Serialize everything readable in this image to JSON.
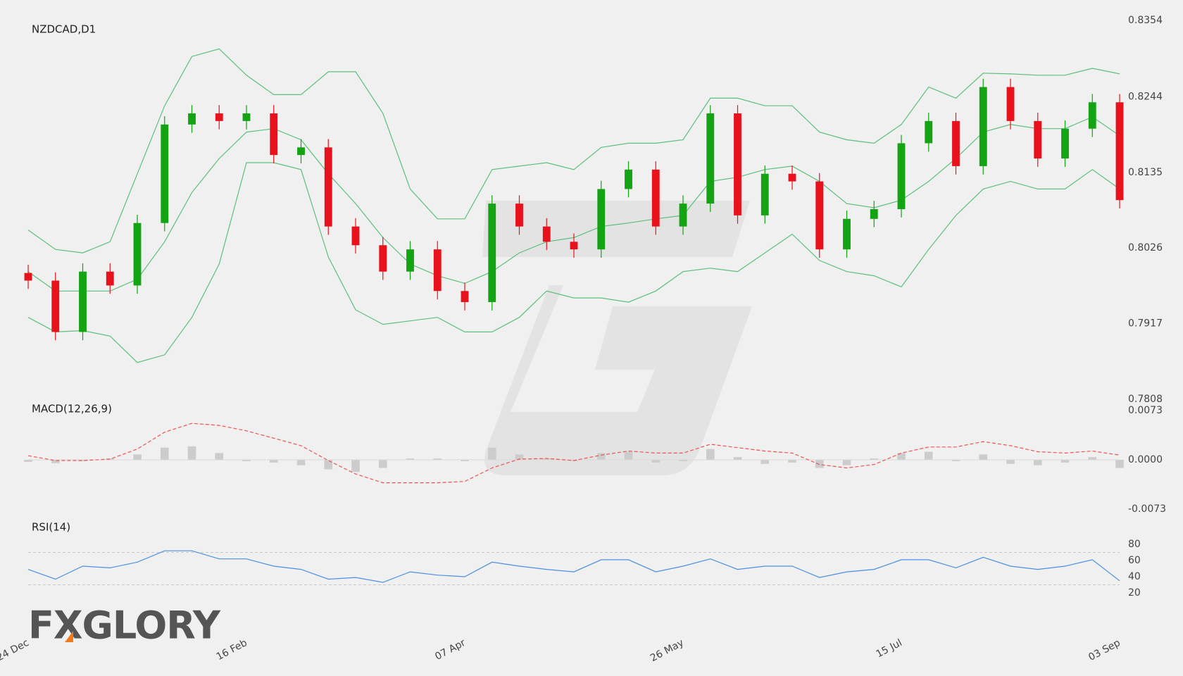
{
  "brand": "FXGLORY",
  "chart_data": [
    {
      "type": "candlestick",
      "title": "NZDCAD,D1",
      "categories": [
        "24 Dec",
        null,
        null,
        null,
        null,
        null,
        null,
        null,
        "16 Feb",
        null,
        null,
        null,
        null,
        null,
        null,
        null,
        "07 Apr",
        null,
        null,
        null,
        null,
        null,
        null,
        null,
        "26 May",
        null,
        null,
        null,
        null,
        null,
        null,
        null,
        "15 Jul",
        null,
        null,
        null,
        null,
        null,
        null,
        null,
        "03 Sep"
      ],
      "open": [
        0.799,
        0.7979,
        0.7905,
        0.7992,
        0.7972,
        0.8062,
        0.8204,
        0.822,
        0.8209,
        0.822,
        0.816,
        0.8171,
        0.8057,
        0.803,
        0.7992,
        0.8024,
        0.7964,
        0.7948,
        0.809,
        0.8057,
        0.8035,
        0.8024,
        0.8111,
        0.8139,
        0.8057,
        0.809,
        0.822,
        0.8073,
        0.8133,
        0.8122,
        0.8024,
        0.8068,
        0.8082,
        0.8177,
        0.8209,
        0.8144,
        0.8258,
        0.8209,
        0.8155,
        0.8198,
        0.8236
      ],
      "high": [
        0.8002,
        0.7991,
        0.8004,
        0.8004,
        0.8074,
        0.8216,
        0.8232,
        0.8232,
        0.8232,
        0.8232,
        0.8183,
        0.8183,
        0.8069,
        0.8042,
        0.8036,
        0.8036,
        0.7976,
        0.8102,
        0.8102,
        0.8069,
        0.8047,
        0.8123,
        0.8151,
        0.8151,
        0.8102,
        0.8232,
        0.8232,
        0.8145,
        0.8145,
        0.8134,
        0.808,
        0.8094,
        0.8189,
        0.8221,
        0.8221,
        0.827,
        0.827,
        0.8221,
        0.821,
        0.8248,
        0.8248
      ],
      "low": [
        0.7967,
        0.7893,
        0.7893,
        0.796,
        0.796,
        0.805,
        0.8192,
        0.8197,
        0.8197,
        0.8148,
        0.8148,
        0.8045,
        0.8018,
        0.798,
        0.798,
        0.7952,
        0.7936,
        0.7936,
        0.8045,
        0.8023,
        0.8012,
        0.8012,
        0.8099,
        0.8045,
        0.8045,
        0.8078,
        0.8061,
        0.8061,
        0.811,
        0.8012,
        0.8012,
        0.8056,
        0.807,
        0.8165,
        0.8132,
        0.8132,
        0.8197,
        0.8143,
        0.8143,
        0.8186,
        0.8083
      ],
      "close": [
        0.7979,
        0.7905,
        0.7992,
        0.7972,
        0.8062,
        0.8204,
        0.822,
        0.8209,
        0.822,
        0.816,
        0.8171,
        0.8057,
        0.803,
        0.7992,
        0.8024,
        0.7964,
        0.7948,
        0.809,
        0.8057,
        0.8035,
        0.8024,
        0.8111,
        0.8139,
        0.8057,
        0.809,
        0.822,
        0.8073,
        0.8133,
        0.8122,
        0.8024,
        0.8068,
        0.8082,
        0.8177,
        0.8209,
        0.8144,
        0.8258,
        0.8209,
        0.8155,
        0.8198,
        0.8236,
        0.8095
      ],
      "up_color": "#13a313",
      "down_color": "#e8121c",
      "series": [
        {
          "color": "#5cbf7c",
          "values": [
            0.8052,
            0.8024,
            0.8019,
            0.8035,
            0.8133,
            0.8231,
            0.8302,
            0.8313,
            0.8275,
            0.8247,
            0.8247,
            0.828,
            0.828,
            0.822,
            0.8111,
            0.8068,
            0.8068,
            0.8139,
            0.8144,
            0.8149,
            0.8139,
            0.8171,
            0.8177,
            0.8177,
            0.8182,
            0.8242,
            0.8242,
            0.8231,
            0.8231,
            0.8193,
            0.8182,
            0.8177,
            0.8204,
            0.8258,
            0.8242,
            0.8278,
            0.8277,
            0.8275,
            0.8275,
            0.8285,
            0.8277
          ]
        },
        {
          "color": "#5cbf7c",
          "values": [
            0.7992,
            0.7964,
            0.7964,
            0.7964,
            0.7981,
            0.8035,
            0.8106,
            0.8155,
            0.8193,
            0.8198,
            0.8182,
            0.8133,
            0.809,
            0.8041,
            0.8003,
            0.7986,
            0.7975,
            0.7992,
            0.8019,
            0.8035,
            0.8041,
            0.8057,
            0.8062,
            0.8068,
            0.8073,
            0.8122,
            0.8128,
            0.8139,
            0.8144,
            0.8122,
            0.809,
            0.8084,
            0.8095,
            0.8122,
            0.8155,
            0.8193,
            0.8204,
            0.8198,
            0.8198,
            0.8215,
            0.8188
          ]
        },
        {
          "color": "#5cbf7c",
          "values": [
            0.7926,
            0.7905,
            0.7907,
            0.7899,
            0.7861,
            0.7872,
            0.7926,
            0.8003,
            0.8149,
            0.8149,
            0.8139,
            0.8013,
            0.7937,
            0.7916,
            0.7921,
            0.7926,
            0.7905,
            0.7905,
            0.7926,
            0.7964,
            0.7954,
            0.7954,
            0.7948,
            0.7964,
            0.7992,
            0.7997,
            0.7992,
            0.8019,
            0.8046,
            0.8008,
            0.7992,
            0.7986,
            0.797,
            0.8024,
            0.8073,
            0.8111,
            0.8122,
            0.8111,
            0.8111,
            0.8139,
            0.8111
          ]
        }
      ],
      "ylim": [
        0.7808,
        0.8354
      ],
      "yticks": [
        0.8354,
        0.8244,
        0.8135,
        0.8026,
        0.7917,
        0.7808
      ]
    },
    {
      "type": "macd",
      "title": "MACD(12,26,9)",
      "series": [
        {
          "color": "#cccccc",
          "values": [
            -0.0003,
            -0.0005,
            -0.0002,
            0.0002,
            0.0008,
            0.0018,
            0.002,
            0.001,
            -0.0002,
            -0.0004,
            -0.0008,
            -0.0014,
            -0.0018,
            -0.0012,
            0.0002,
            0.0002,
            -0.0002,
            0.0018,
            0.0008,
            0.0002,
            -0.0002,
            0.001,
            0.0012,
            -0.0004,
            -0.0002,
            0.0016,
            0.0004,
            -0.0006,
            -0.0004,
            -0.0012,
            -0.0008,
            0.0002,
            0.001,
            0.0012,
            -0.0002,
            0.0008,
            -0.0006,
            -0.0008,
            -0.0004,
            0.0004,
            -0.0012
          ]
        },
        {
          "color": "#ef5350",
          "dashed": true,
          "values": [
            0.0006,
            -0.0001,
            -0.0001,
            0.0001,
            0.0016,
            0.0041,
            0.0054,
            0.0051,
            0.0043,
            0.0032,
            0.0021,
            -0.0001,
            -0.0021,
            -0.0034,
            -0.0034,
            -0.0034,
            -0.0032,
            -0.0012,
            0.0001,
            0.0002,
            -0.0001,
            0.0007,
            0.0013,
            0.001,
            0.001,
            0.0023,
            0.0018,
            0.0013,
            0.001,
            -0.0007,
            -0.0012,
            -0.0007,
            0.001,
            0.0019,
            0.0019,
            0.0027,
            0.0021,
            0.0012,
            0.001,
            0.0013,
            0.0007
          ]
        }
      ],
      "ylim": [
        -0.0073,
        0.0073
      ],
      "yticks": [
        0.0073,
        {
          "value": 0,
          "label": "0.0000"
        },
        -0.0073
      ]
    },
    {
      "type": "line",
      "title": "RSI(14)",
      "color": "#4a90e2",
      "values": [
        49,
        37,
        53,
        51,
        58,
        72,
        72,
        62,
        62,
        53,
        49,
        37,
        39,
        33,
        46,
        42,
        40,
        58,
        53,
        49,
        46,
        61,
        61,
        46,
        53,
        62,
        49,
        53,
        53,
        39,
        46,
        49,
        61,
        61,
        51,
        64,
        53,
        49,
        53,
        61,
        35
      ],
      "levels": [
        70,
        30
      ],
      "ylim": [
        20,
        80
      ],
      "yticks": [
        80,
        60,
        40,
        20
      ]
    }
  ]
}
